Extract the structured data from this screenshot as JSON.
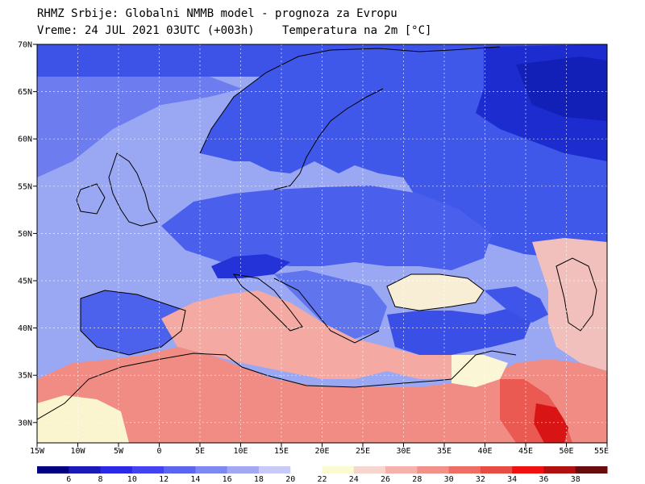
{
  "header": {
    "line1": "RHMZ Srbije: Globalni NMMB model - prognoza za Evropu",
    "line2_left": "Vreme: 24 JUL 2021 03UTC (+003h)",
    "line2_right": "Temperatura na 2m [°C]"
  },
  "map_data": {
    "variable": "Temperatura na 2m",
    "units": "°C",
    "lon_range": [
      -15,
      55
    ],
    "lat_range": [
      28,
      70
    ],
    "lon_ticks": [
      "15W",
      "10W",
      "5W",
      "0",
      "5E",
      "10E",
      "15E",
      "20E",
      "25E",
      "30E",
      "35E",
      "40E",
      "45E",
      "50E",
      "55E"
    ],
    "lat_ticks": [
      "30N",
      "35N",
      "40N",
      "45N",
      "50N",
      "55N",
      "60N",
      "65N",
      "70N"
    ],
    "grid": true,
    "colors": {
      "sea_mid_north": "#9aa7f2",
      "land_north": "#3e57ea",
      "land_far_north": "#1d2ccf",
      "warm_sea": "#f4a9a3",
      "hot_land": "#f26f6a",
      "very_hot": "#d81414",
      "neutral": "#fbfbd3"
    }
  },
  "legend": {
    "labels": [
      "6",
      "8",
      "10",
      "12",
      "14",
      "16",
      "18",
      "20",
      "22",
      "24",
      "26",
      "28",
      "30",
      "32",
      "34",
      "36",
      "38"
    ],
    "colors": [
      "#000080",
      "#1a1ab8",
      "#2a2ae6",
      "#4343f2",
      "#5a66f0",
      "#7d88f0",
      "#a3a8f4",
      "#c8caf7",
      "#ffffff",
      "#fbfbd3",
      "#f8d6d0",
      "#f5b1aa",
      "#f2918a",
      "#ee6e66",
      "#e84d43",
      "#f01010",
      "#b01010",
      "#6a0c0c"
    ]
  }
}
